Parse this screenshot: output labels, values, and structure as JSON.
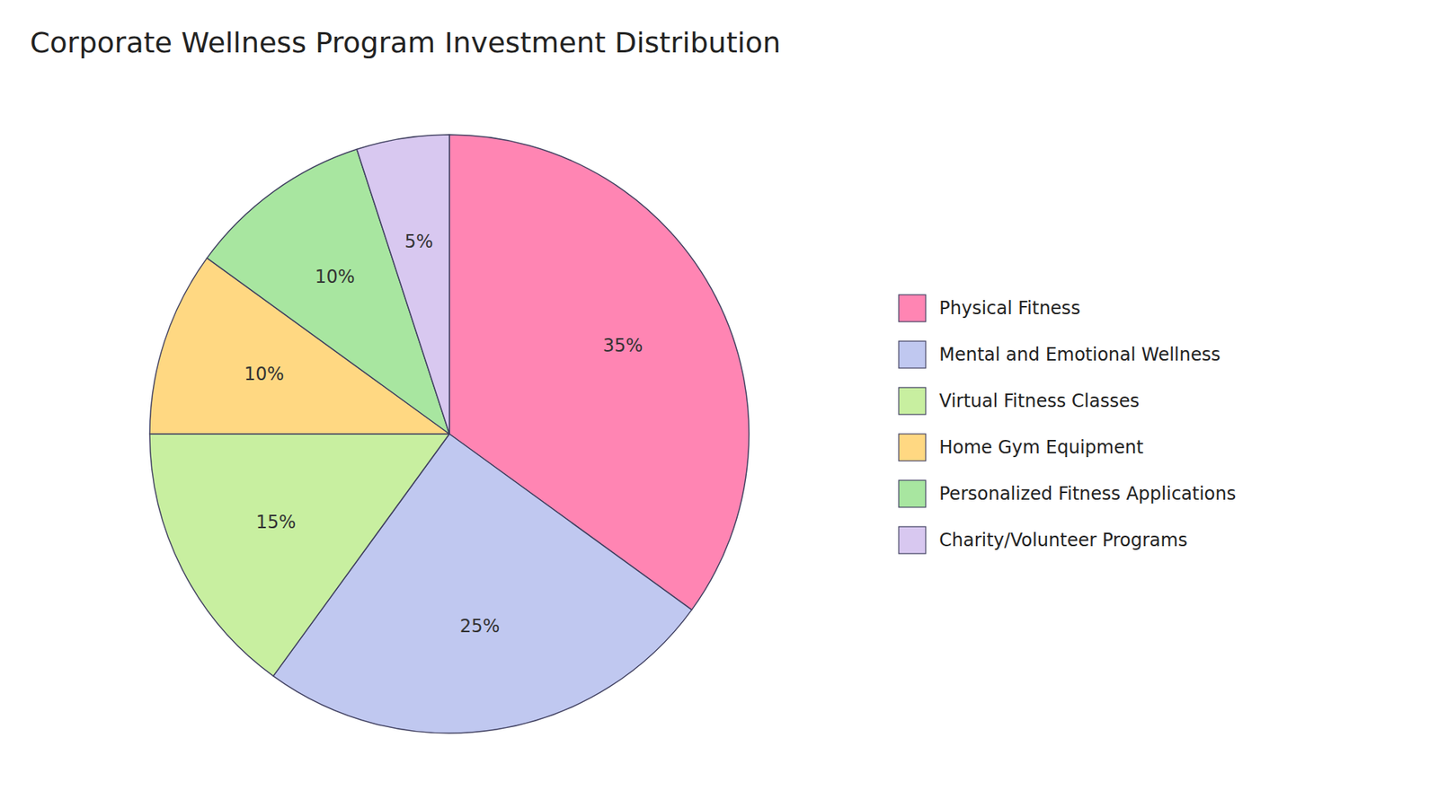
{
  "chart_data": {
    "type": "pie",
    "title": "Corporate Wellness Program Investment Distribution",
    "categories": [
      "Physical Fitness",
      "Mental and Emotional Wellness",
      "Virtual Fitness Classes",
      "Home Gym Equipment",
      "Personalized Fitness Applications",
      "Charity/Volunteer Programs"
    ],
    "values": [
      35,
      25,
      15,
      10,
      10,
      5
    ],
    "value_labels": [
      "35%",
      "25%",
      "15%",
      "10%",
      "10%",
      "5%"
    ],
    "colors": [
      "#FF85B3",
      "#C0C8F0",
      "#C8EFA0",
      "#FFD882",
      "#A8E6A0",
      "#D8C8F0"
    ],
    "data_labels": true,
    "legend": "right"
  }
}
